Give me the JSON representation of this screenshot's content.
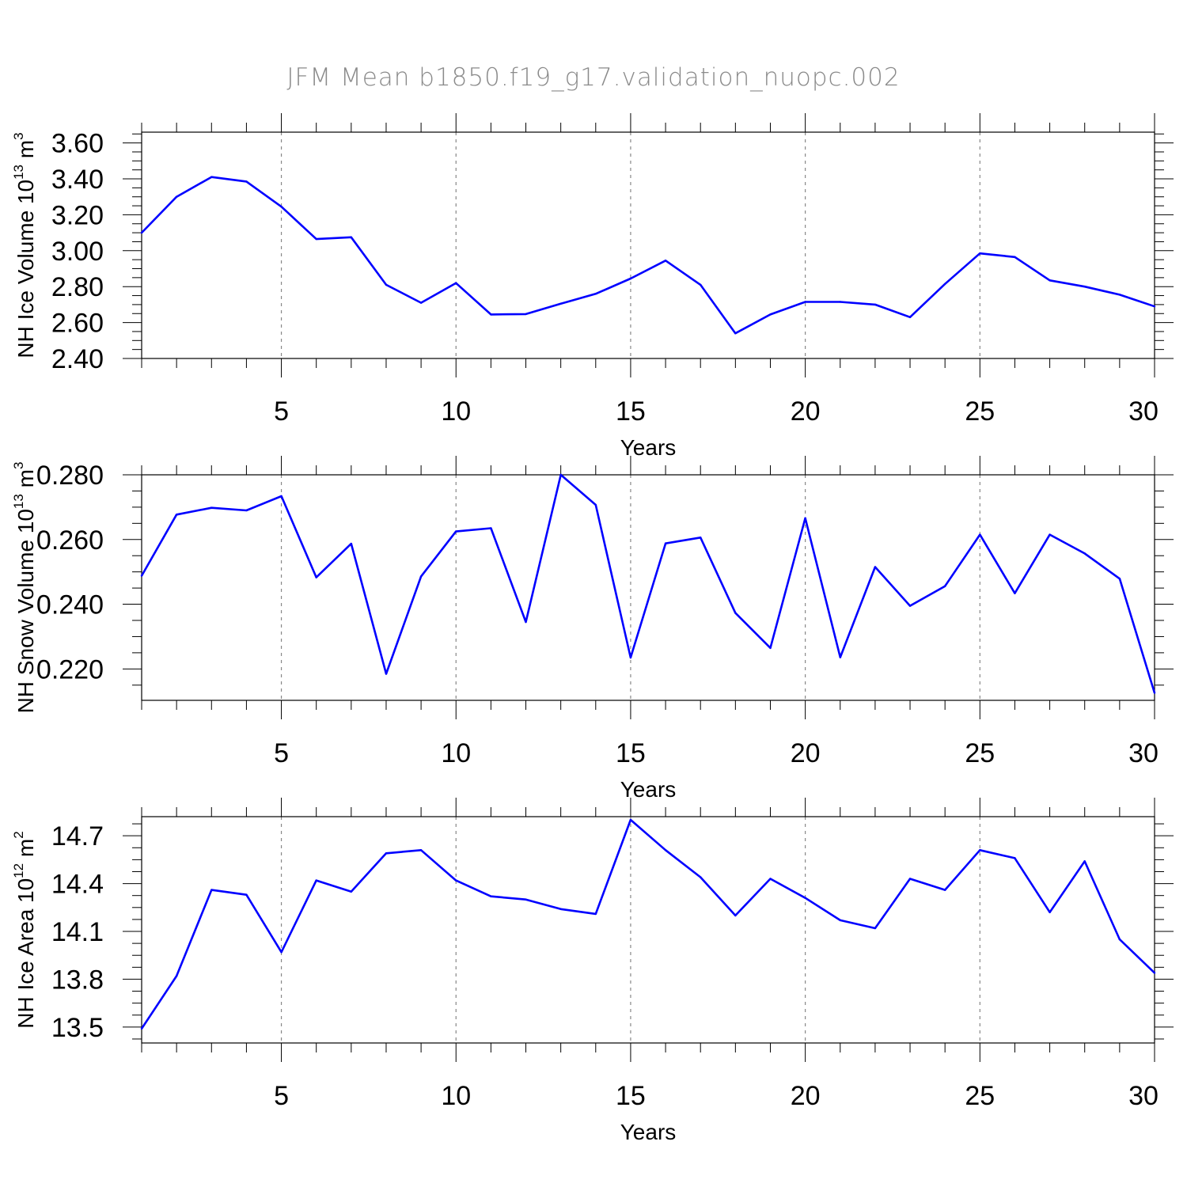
{
  "title": "JFM Mean b1850.f19_g17.validation_nuopc.002",
  "colors": {
    "line": "#0000ff",
    "grid": "#888888",
    "axis": "#000000",
    "title": "#8a8a8a"
  },
  "chart_data": [
    {
      "type": "line",
      "xlabel": "Years",
      "ylabel_main": "NH Ice Volume 10",
      "ylabel_exp": "13",
      "ylabel_unit": " m",
      "ylabel_unit_exp": "3",
      "xlim": [
        1,
        30
      ],
      "ylim": [
        2.4,
        3.66
      ],
      "xticks": [
        5,
        10,
        15,
        20,
        25,
        30
      ],
      "xtick_labels": [
        "5",
        "10",
        "15",
        "20",
        "25",
        "30"
      ],
      "yticks": [
        2.4,
        2.6,
        2.8,
        3.0,
        3.2,
        3.4,
        3.6
      ],
      "ytick_labels": [
        "2.40",
        "2.60",
        "2.80",
        "3.00",
        "3.20",
        "3.40",
        "3.60"
      ],
      "grid_x": true,
      "x": [
        1,
        2,
        3,
        4,
        5,
        6,
        7,
        8,
        9,
        10,
        11,
        12,
        13,
        14,
        15,
        16,
        17,
        18,
        19,
        20,
        21,
        22,
        23,
        24,
        25,
        26,
        27,
        28,
        29,
        30
      ],
      "y": [
        3.1,
        3.3,
        3.41,
        3.385,
        3.245,
        3.065,
        3.075,
        2.81,
        2.71,
        2.82,
        2.645,
        2.647,
        2.705,
        2.76,
        2.845,
        2.945,
        2.81,
        2.54,
        2.645,
        2.715,
        2.715,
        2.7,
        2.63,
        2.815,
        2.985,
        2.965,
        2.835,
        2.8,
        2.755,
        2.69
      ]
    },
    {
      "type": "line",
      "xlabel": "Years",
      "ylabel_main": "NH Snow Volume 10",
      "ylabel_exp": "13",
      "ylabel_unit": " m",
      "ylabel_unit_exp": "3",
      "xlim": [
        1,
        30
      ],
      "ylim": [
        0.2103,
        0.28
      ],
      "xticks": [
        5,
        10,
        15,
        20,
        25,
        30
      ],
      "xtick_labels": [
        "5",
        "10",
        "15",
        "20",
        "25",
        "30"
      ],
      "yticks": [
        0.22,
        0.24,
        0.26,
        0.28
      ],
      "ytick_labels": [
        "0.220",
        "0.240",
        "0.260",
        "0.280"
      ],
      "grid_x": true,
      "x": [
        1,
        2,
        3,
        4,
        5,
        6,
        7,
        8,
        9,
        10,
        11,
        12,
        13,
        14,
        15,
        16,
        17,
        18,
        19,
        20,
        21,
        22,
        23,
        24,
        25,
        26,
        27,
        28,
        29,
        30
      ],
      "y": [
        0.2488,
        0.2677,
        0.2698,
        0.269,
        0.2734,
        0.2483,
        0.2587,
        0.2185,
        0.2486,
        0.2625,
        0.2635,
        0.2345,
        0.28,
        0.2707,
        0.2235,
        0.2588,
        0.2606,
        0.2373,
        0.2265,
        0.2666,
        0.2236,
        0.2515,
        0.2395,
        0.2456,
        0.2615,
        0.2434,
        0.2615,
        0.2557,
        0.2479,
        0.2126
      ]
    },
    {
      "type": "line",
      "xlabel": "Years",
      "ylabel_main": "NH Ice Area 10",
      "ylabel_exp": "12",
      "ylabel_unit": " m",
      "ylabel_unit_exp": "2",
      "xlim": [
        1,
        30
      ],
      "ylim": [
        13.4,
        14.82
      ],
      "xticks": [
        5,
        10,
        15,
        20,
        25,
        30
      ],
      "xtick_labels": [
        "5",
        "10",
        "15",
        "20",
        "25",
        "30"
      ],
      "yticks": [
        13.5,
        13.8,
        14.1,
        14.4,
        14.7
      ],
      "ytick_labels": [
        "13.5",
        "13.8",
        "14.1",
        "14.4",
        "14.7"
      ],
      "grid_x": true,
      "x": [
        1,
        2,
        3,
        4,
        5,
        6,
        7,
        8,
        9,
        10,
        11,
        12,
        13,
        14,
        15,
        16,
        17,
        18,
        19,
        20,
        21,
        22,
        23,
        24,
        25,
        26,
        27,
        28,
        29,
        30
      ],
      "y": [
        13.49,
        13.82,
        14.36,
        14.33,
        13.97,
        14.42,
        14.35,
        14.59,
        14.61,
        14.42,
        14.32,
        14.3,
        14.24,
        14.21,
        14.8,
        14.61,
        14.44,
        14.2,
        14.43,
        14.31,
        14.17,
        14.12,
        14.43,
        14.36,
        14.61,
        14.56,
        14.22,
        14.54,
        14.05,
        13.84
      ]
    }
  ]
}
